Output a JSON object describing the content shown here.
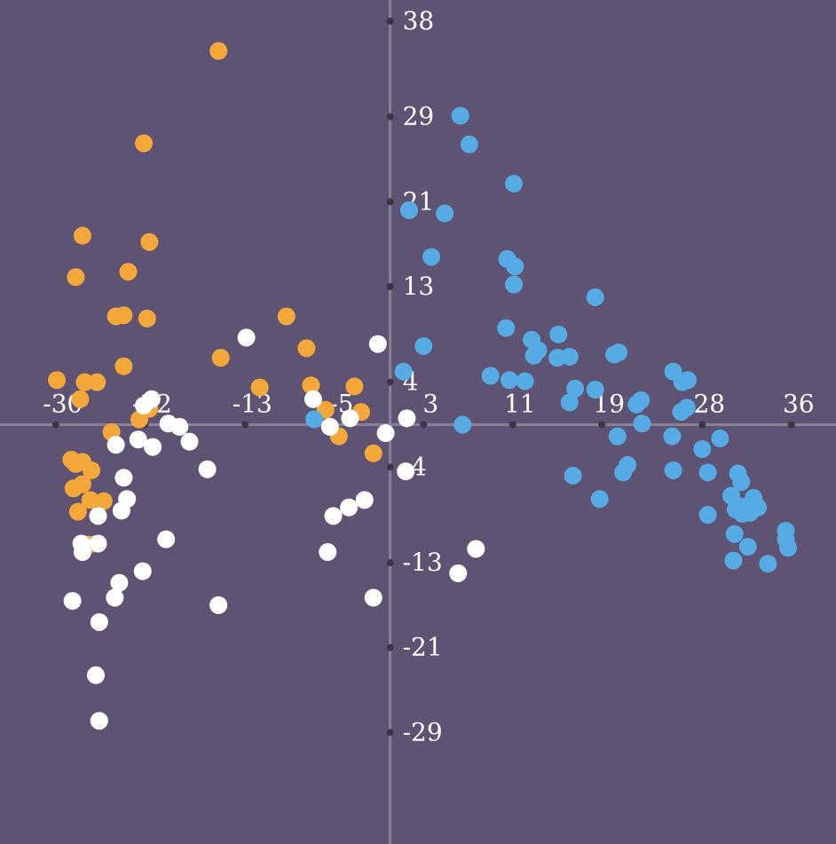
{
  "chart_data": {
    "type": "scatter",
    "title": "",
    "xlabel": "",
    "ylabel": "",
    "xlim": [
      -35,
      40
    ],
    "ylim": [
      -39.5,
      40
    ],
    "grid": false,
    "legend": "none",
    "background": "#5e5373",
    "axis_color": "#8a8098",
    "x_ticks": [
      -30,
      -22,
      -13,
      -5,
      3,
      11,
      19,
      28,
      36
    ],
    "y_ticks": [
      38,
      29,
      21,
      13,
      4,
      -4,
      -13,
      -21,
      -29
    ],
    "series": [
      {
        "color": "#f5a83a",
        "points": [
          [
            -15.4,
            35.2
          ],
          [
            -22.1,
            26.5
          ],
          [
            -27.6,
            17.8
          ],
          [
            -21.6,
            17.2
          ],
          [
            -23.5,
            14.4
          ],
          [
            -28.2,
            13.9
          ],
          [
            -23.9,
            10.3
          ],
          [
            -24.6,
            10.2
          ],
          [
            -21.8,
            10.0
          ],
          [
            -9.3,
            10.2
          ],
          [
            -7.5,
            7.2
          ],
          [
            -15.2,
            6.3
          ],
          [
            -23.9,
            5.5
          ],
          [
            -29.9,
            4.2
          ],
          [
            -27.4,
            4.0
          ],
          [
            -26.3,
            4.0
          ],
          [
            -7.1,
            3.7
          ],
          [
            -3.2,
            3.6
          ],
          [
            -11.7,
            3.5
          ],
          [
            -2.6,
            1.2
          ],
          [
            -5.8,
            1.4
          ],
          [
            -27.8,
            2.4
          ],
          [
            -21.6,
            1.5
          ],
          [
            -22.5,
            0.5
          ],
          [
            -25.0,
            -0.7
          ],
          [
            -4.6,
            -1.1
          ],
          [
            -1.5,
            -2.7
          ],
          [
            -28.6,
            -3.3
          ],
          [
            -27.6,
            -3.5
          ],
          [
            -28.2,
            -3.7
          ],
          [
            -26.8,
            -4.3
          ],
          [
            -27.6,
            -5.6
          ],
          [
            -28.4,
            -6.0
          ],
          [
            -26.9,
            -7.1
          ],
          [
            -25.7,
            -7.2
          ],
          [
            -28.0,
            -8.2
          ],
          [
            -27.0,
            -11.3
          ]
        ]
      },
      {
        "color": "#56abe4",
        "points": [
          [
            6.3,
            29.1
          ],
          [
            7.1,
            26.4
          ],
          [
            11.1,
            22.7
          ],
          [
            1.7,
            20.2
          ],
          [
            4.9,
            19.9
          ],
          [
            3.7,
            15.8
          ],
          [
            10.5,
            15.6
          ],
          [
            11.2,
            14.9
          ],
          [
            11.1,
            13.2
          ],
          [
            18.4,
            12.0
          ],
          [
            10.4,
            9.1
          ],
          [
            15.1,
            8.5
          ],
          [
            3.0,
            7.4
          ],
          [
            12.7,
            8.0
          ],
          [
            13.3,
            7.0
          ],
          [
            12.9,
            6.5
          ],
          [
            15.0,
            6.3
          ],
          [
            16.1,
            6.4
          ],
          [
            20.1,
            6.6
          ],
          [
            20.5,
            6.8
          ],
          [
            1.2,
            5.0
          ],
          [
            9.0,
            4.6
          ],
          [
            10.7,
            4.2
          ],
          [
            12.1,
            4.1
          ],
          [
            25.4,
            5.0
          ],
          [
            26.7,
            4.2
          ],
          [
            26.2,
            4.0
          ],
          [
            16.6,
            3.4
          ],
          [
            18.4,
            3.3
          ],
          [
            16.1,
            2.1
          ],
          [
            22.1,
            1.9
          ],
          [
            22.5,
            2.3
          ],
          [
            26.6,
            1.6
          ],
          [
            26.1,
            1.2
          ],
          [
            -6.8,
            0.5
          ],
          [
            6.5,
            0.0
          ],
          [
            22.6,
            0.1
          ],
          [
            20.4,
            -1.1
          ],
          [
            25.3,
            -1.1
          ],
          [
            29.6,
            -1.3
          ],
          [
            28.0,
            -2.3
          ],
          [
            21.3,
            -3.8
          ],
          [
            20.9,
            -4.5
          ],
          [
            16.4,
            -4.8
          ],
          [
            25.4,
            -4.3
          ],
          [
            28.5,
            -4.5
          ],
          [
            31.2,
            -4.6
          ],
          [
            31.5,
            -5.4
          ],
          [
            18.8,
            -7.0
          ],
          [
            30.6,
            -6.7
          ],
          [
            32.6,
            -6.9
          ],
          [
            31.5,
            -7.7
          ],
          [
            31.0,
            -8.0
          ],
          [
            32.2,
            -7.8
          ],
          [
            33.0,
            -7.8
          ],
          [
            32.3,
            -8.3
          ],
          [
            31.6,
            -8.4
          ],
          [
            28.5,
            -8.5
          ],
          [
            35.5,
            -10.0
          ],
          [
            35.5,
            -10.8
          ],
          [
            30.9,
            -10.3
          ],
          [
            32.1,
            -11.5
          ],
          [
            35.7,
            -11.6
          ],
          [
            30.8,
            -12.8
          ],
          [
            33.9,
            -13.1
          ]
        ]
      },
      {
        "color": "#ffffff",
        "points": [
          [
            -12.9,
            8.2
          ],
          [
            -1.1,
            7.6
          ],
          [
            -21.4,
            2.4
          ],
          [
            -6.9,
            2.4
          ],
          [
            -22.1,
            1.8
          ],
          [
            -19.9,
            0.1
          ],
          [
            -18.9,
            -0.2
          ],
          [
            -3.6,
            0.6
          ],
          [
            1.5,
            0.6
          ],
          [
            -5.4,
            -0.2
          ],
          [
            -0.4,
            -0.8
          ],
          [
            -22.6,
            -1.4
          ],
          [
            -18.0,
            -1.6
          ],
          [
            -24.6,
            -1.9
          ],
          [
            -21.3,
            -2.1
          ],
          [
            -16.4,
            -4.2
          ],
          [
            1.4,
            -4.4
          ],
          [
            -23.9,
            -5.0
          ],
          [
            -23.6,
            -7.0
          ],
          [
            -2.3,
            -7.1
          ],
          [
            -24.1,
            -8.1
          ],
          [
            -3.7,
            -7.8
          ],
          [
            -5.1,
            -8.6
          ],
          [
            -26.2,
            -8.6
          ],
          [
            -20.1,
            -10.8
          ],
          [
            -27.7,
            -11.2
          ],
          [
            -26.2,
            -11.2
          ],
          [
            -27.6,
            -12.0
          ],
          [
            7.7,
            -11.7
          ],
          [
            -5.6,
            -12.0
          ],
          [
            -22.2,
            -13.8
          ],
          [
            -24.3,
            -14.9
          ],
          [
            6.1,
            -14.0
          ],
          [
            -24.7,
            -16.3
          ],
          [
            -1.5,
            -16.3
          ],
          [
            -28.5,
            -16.6
          ],
          [
            -15.4,
            -17.0
          ],
          [
            -26.1,
            -18.6
          ],
          [
            -26.4,
            -23.6
          ],
          [
            -26.1,
            -27.9
          ]
        ]
      }
    ]
  }
}
